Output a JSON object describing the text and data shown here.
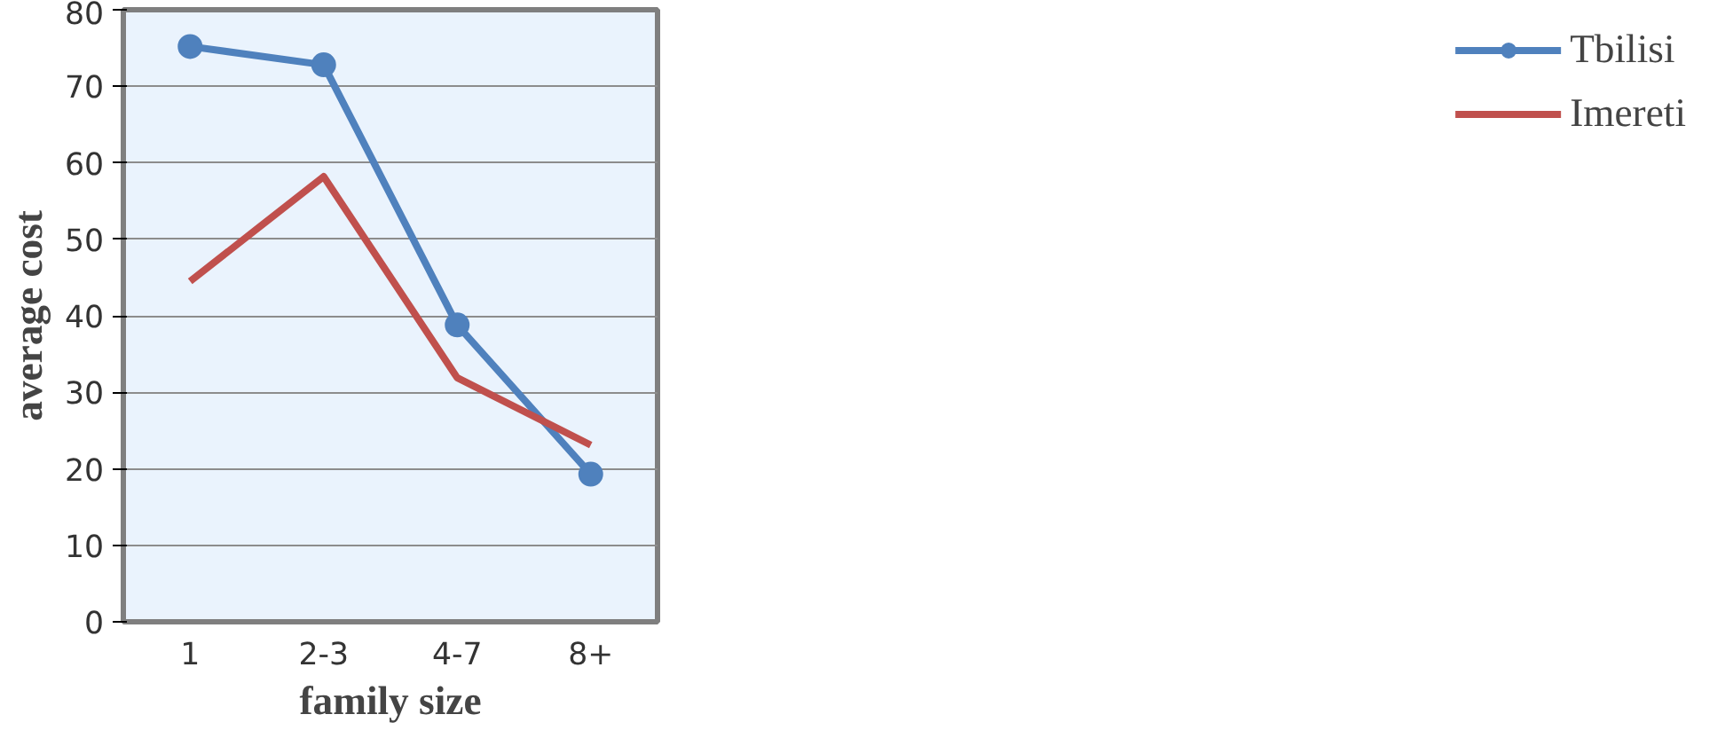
{
  "chart_data": {
    "type": "line",
    "xlabel": "family size",
    "ylabel": "average cost",
    "categories": [
      "1",
      "2-3",
      "4-7",
      "8+"
    ],
    "series": [
      {
        "name": "Tbilisi",
        "color": "#4f81bd",
        "values": [
          75.2,
          72.8,
          38.8,
          19.3
        ],
        "marker": "circle"
      },
      {
        "name": "Imereti",
        "color": "#c0504d",
        "values": [
          44.5,
          58.2,
          31.9,
          23.1
        ],
        "marker": "none"
      }
    ],
    "ylim": [
      0,
      80
    ],
    "yticks": [
      0,
      10,
      20,
      30,
      40,
      50,
      60,
      70,
      80
    ],
    "grid": "y",
    "legend": "right"
  }
}
